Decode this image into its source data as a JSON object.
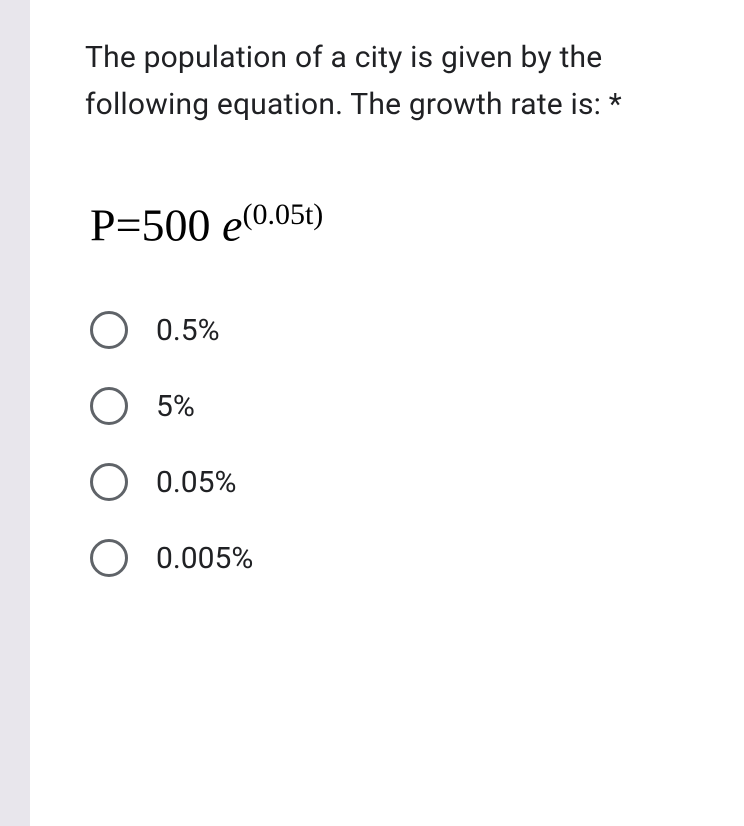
{
  "question": {
    "text": "The population of a city is given by the following equation. The growth rate is: ",
    "required_marker": "*"
  },
  "equation": {
    "prefix": "P=500 ",
    "base": "e",
    "exponent": "(0.05t)"
  },
  "options": [
    {
      "label": "0.5%"
    },
    {
      "label": "5%"
    },
    {
      "label": "0.05%"
    },
    {
      "label": "0.005%"
    }
  ],
  "styling": {
    "background_color": "#e8e6ec",
    "card_background_color": "#ffffff",
    "text_color": "#202124",
    "radio_border_color": "#5f6368",
    "question_font_size": 30,
    "equation_font_size": 46,
    "option_font_size": 30,
    "equation_font_family": "Times New Roman",
    "body_font_family": "Roboto"
  }
}
